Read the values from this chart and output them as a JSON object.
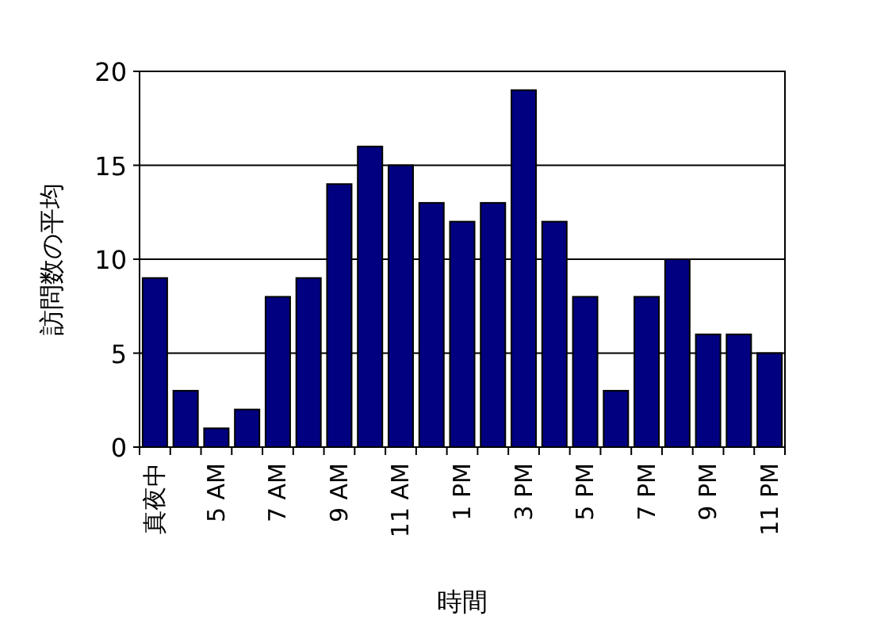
{
  "chart_data": {
    "type": "bar",
    "xlabel": "時間",
    "ylabel": "訪問数の平均",
    "categories": [
      "真夜中",
      null,
      "5 AM",
      null,
      "7 AM",
      null,
      "9 AM",
      null,
      "11 AM",
      null,
      "1 PM",
      null,
      "3 PM",
      null,
      "5 PM",
      null,
      "7 PM",
      null,
      "9 PM",
      null,
      "11 PM"
    ],
    "values": [
      9,
      3,
      1,
      2,
      8,
      9,
      14,
      16,
      15,
      13,
      12,
      13,
      19,
      12,
      8,
      3,
      8,
      10,
      6,
      6,
      5
    ],
    "color": "#000080",
    "ylim": [
      0,
      20
    ],
    "yticks": [
      0,
      5,
      10,
      15,
      20
    ],
    "grid": "y"
  }
}
